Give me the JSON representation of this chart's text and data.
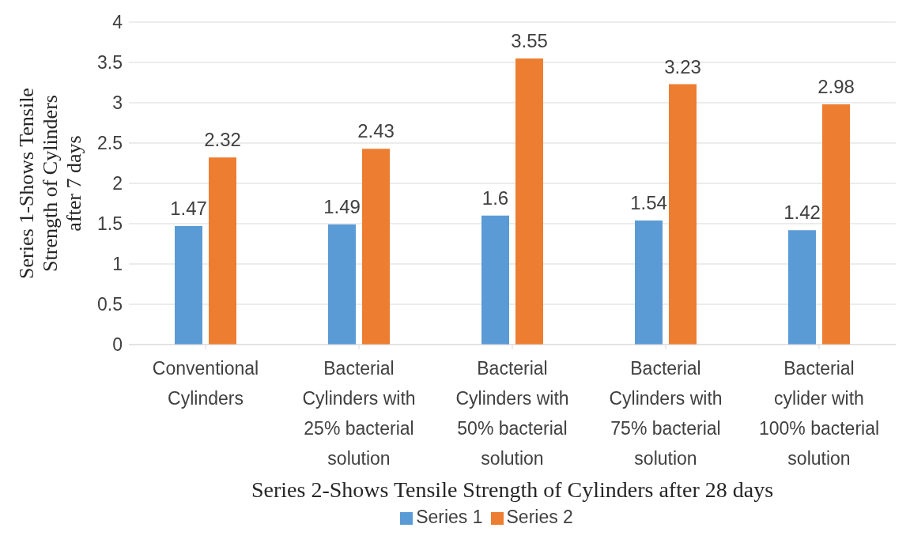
{
  "chart_data": {
    "type": "bar",
    "xlabel": "Series 2-Shows Tensile Strength of Cylinders after 28 days",
    "ylabel": "Series 1-Shows Tensile Strength of Cylinders after 7 days",
    "categories": [
      "Conventional Cylinders",
      "Bacterial Cylinders with 25% bacterial solution",
      "Bacterial Cylinders with 50% bacterial solution",
      "Bacterial Cylinders with 75% bacterial solution",
      "Bacterial cylider with 100% bacterial solution"
    ],
    "series": [
      {
        "name": "Series 1",
        "color": "#5b9bd5",
        "values": [
          1.47,
          1.49,
          1.6,
          1.54,
          1.42
        ]
      },
      {
        "name": "Series 2",
        "color": "#ed7d31",
        "values": [
          2.32,
          2.43,
          3.55,
          3.23,
          2.98
        ]
      }
    ],
    "ylim": [
      0,
      4
    ],
    "yticks": [
      0,
      0.5,
      1,
      1.5,
      2,
      2.5,
      3,
      3.5,
      4
    ],
    "grid": "y",
    "legend": "bottom",
    "data_labels": true
  }
}
